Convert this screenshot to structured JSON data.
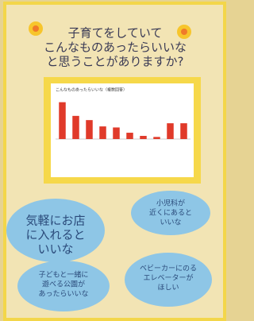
{
  "title": {
    "lines": [
      "子育てをしていて",
      "こんなものあったらいいな",
      "と思うことがありますか?"
    ]
  },
  "chart": {
    "title": "こんなものあったらいいな（複数回答）",
    "values": [
      35,
      22,
      18,
      12,
      11,
      6,
      3,
      2,
      15,
      15
    ],
    "ylim": [
      0,
      40
    ],
    "color": "#e03a2a"
  },
  "bubbles": [
    {
      "lines": [
        "気軽にお店",
        "に入れると",
        "いいな"
      ]
    },
    {
      "lines": [
        "小児科が",
        "近くにあると",
        "いいな"
      ]
    },
    {
      "lines": [
        "子どもと一緒に",
        "遊べる公園が",
        "あったらいいな"
      ]
    },
    {
      "lines": [
        "ベビーカーにのる",
        "エレベーターが",
        "ほしい"
      ]
    }
  ]
}
